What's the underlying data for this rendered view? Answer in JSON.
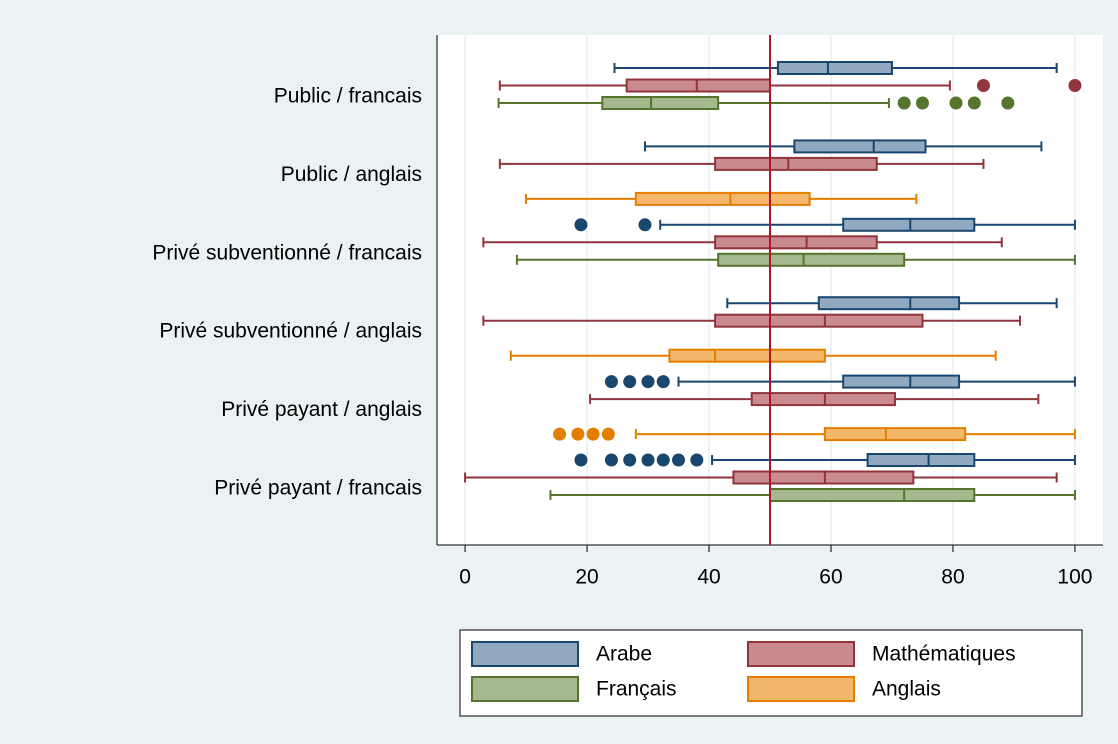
{
  "chart_data": {
    "type": "boxplot",
    "orientation": "horizontal",
    "categories": [
      "Public / francais",
      "Public / anglais",
      "Privé subventionné / francais",
      "Privé subventionné / anglais",
      "Privé payant / anglais",
      "Privé payant / francais"
    ],
    "series": [
      {
        "name": "Arabe",
        "color": "#90a8c0",
        "edgecolor": "#1a476f",
        "values": [
          {
            "whislo": 24.5,
            "q1": 51.3,
            "med": 59.5,
            "q3": 70,
            "whishi": 97,
            "fliers": []
          },
          {
            "whislo": 29.5,
            "q1": 54,
            "med": 67,
            "q3": 75.5,
            "whishi": 94.5,
            "fliers": []
          },
          {
            "whislo": 32,
            "q1": 62,
            "med": 73,
            "q3": 83.5,
            "whishi": 100,
            "fliers": [
              19,
              29.5
            ]
          },
          {
            "whislo": 43,
            "q1": 58,
            "med": 73,
            "q3": 81,
            "whishi": 97,
            "fliers": []
          },
          {
            "whislo": 35,
            "q1": 62,
            "med": 73,
            "q3": 81,
            "whishi": 100,
            "fliers": [
              24,
              27,
              30,
              32.5
            ]
          },
          {
            "whislo": 40.5,
            "q1": 66,
            "med": 76,
            "q3": 83.5,
            "whishi": 100,
            "fliers": [
              19,
              24,
              27,
              30,
              32.5,
              35,
              38
            ]
          }
        ]
      },
      {
        "name": "Mathématiques",
        "color": "#c98b8f",
        "edgecolor": "#90353b",
        "values": [
          {
            "whislo": 5.7,
            "q1": 26.5,
            "med": 38,
            "q3": 50,
            "whishi": 79.5,
            "fliers": [
              85,
              100
            ]
          },
          {
            "whislo": 5.7,
            "q1": 41,
            "med": 53,
            "q3": 67.5,
            "whishi": 85,
            "fliers": []
          },
          {
            "whislo": 3,
            "q1": 41,
            "med": 56,
            "q3": 67.5,
            "whishi": 88,
            "fliers": []
          },
          {
            "whislo": 3,
            "q1": 41,
            "med": 59,
            "q3": 75,
            "whishi": 91,
            "fliers": []
          },
          {
            "whislo": 20.5,
            "q1": 47,
            "med": 59,
            "q3": 70.5,
            "whishi": 94,
            "fliers": []
          },
          {
            "whislo": 0,
            "q1": 44,
            "med": 59,
            "q3": 73.5,
            "whishi": 97,
            "fliers": []
          }
        ]
      },
      {
        "name": "Français",
        "color": "#a6b88e",
        "edgecolor": "#55752f",
        "values": [
          {
            "whislo": 5.5,
            "q1": 22.5,
            "med": 30.5,
            "q3": 41.5,
            "whishi": 69.5,
            "fliers": [
              72,
              75,
              80.5,
              83.5,
              89
            ]
          },
          null,
          {
            "whislo": 8.5,
            "q1": 41.5,
            "med": 55.5,
            "q3": 72,
            "whishi": 100,
            "fliers": []
          },
          null,
          null,
          {
            "whislo": 14,
            "q1": 50,
            "med": 72,
            "q3": 83.5,
            "whishi": 100,
            "fliers": []
          }
        ]
      },
      {
        "name": "Anglais",
        "color": "#f2b76b",
        "edgecolor": "#e37e00",
        "values": [
          null,
          {
            "whislo": 10,
            "q1": 28,
            "med": 43.5,
            "q3": 56.5,
            "whishi": 74,
            "fliers": []
          },
          null,
          {
            "whislo": 7.5,
            "q1": 33.5,
            "med": 41,
            "q3": 59,
            "whishi": 87,
            "fliers": []
          },
          {
            "whislo": 28,
            "q1": 59,
            "med": 69,
            "q3": 82,
            "whishi": 100,
            "fliers": [
              15.5,
              18.5,
              21,
              23.5
            ]
          },
          null
        ]
      }
    ],
    "xlim": [
      -4.6,
      104.6
    ],
    "xticks": [
      0,
      20,
      40,
      60,
      80,
      100
    ],
    "grid": true,
    "xline": 50,
    "xline_color": "#b0152c",
    "legend": "bottom"
  }
}
